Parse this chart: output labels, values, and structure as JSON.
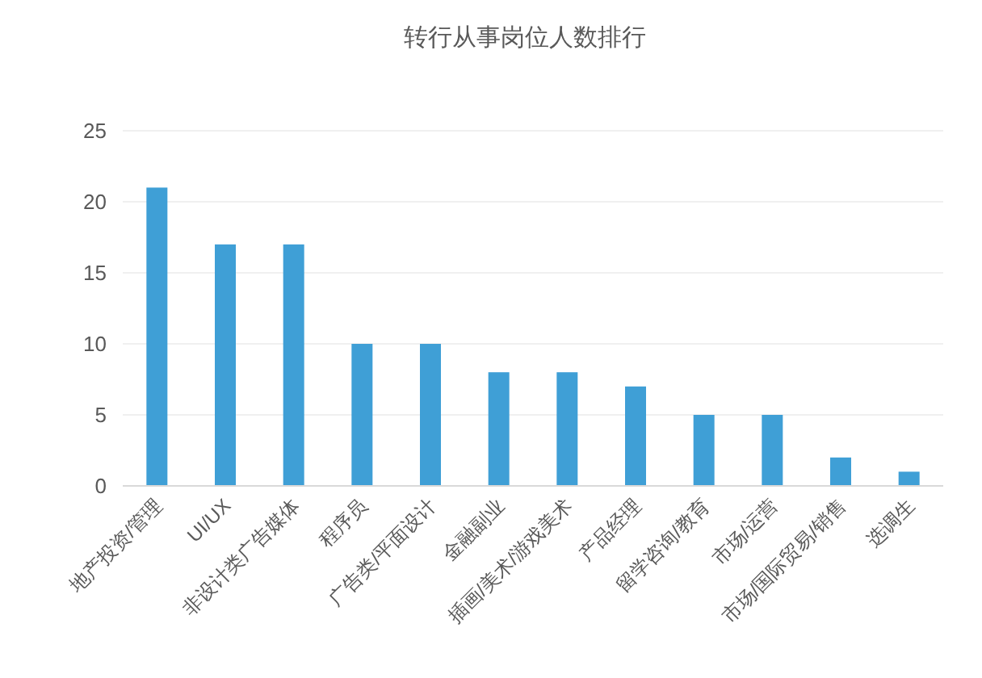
{
  "chart_data": {
    "type": "bar",
    "title": "转行从事岗位人数排行",
    "categories": [
      "地产投资/管理",
      "UI/UX",
      "非设计类广告媒体",
      "程序员",
      "广告类/平面设计",
      "金融副业",
      "插画/美术/游戏美术",
      "产品经理",
      "留学咨询/教育",
      "市场/运营",
      "市场/国际贸易/销售",
      "选调生"
    ],
    "values": [
      21,
      17,
      17,
      10,
      10,
      8,
      8,
      7,
      5,
      5,
      2,
      1
    ],
    "color": "#3f9fd6",
    "ylim": [
      0,
      25
    ],
    "yticks": [
      0,
      5,
      10,
      15,
      20,
      25
    ],
    "grid": "y"
  }
}
